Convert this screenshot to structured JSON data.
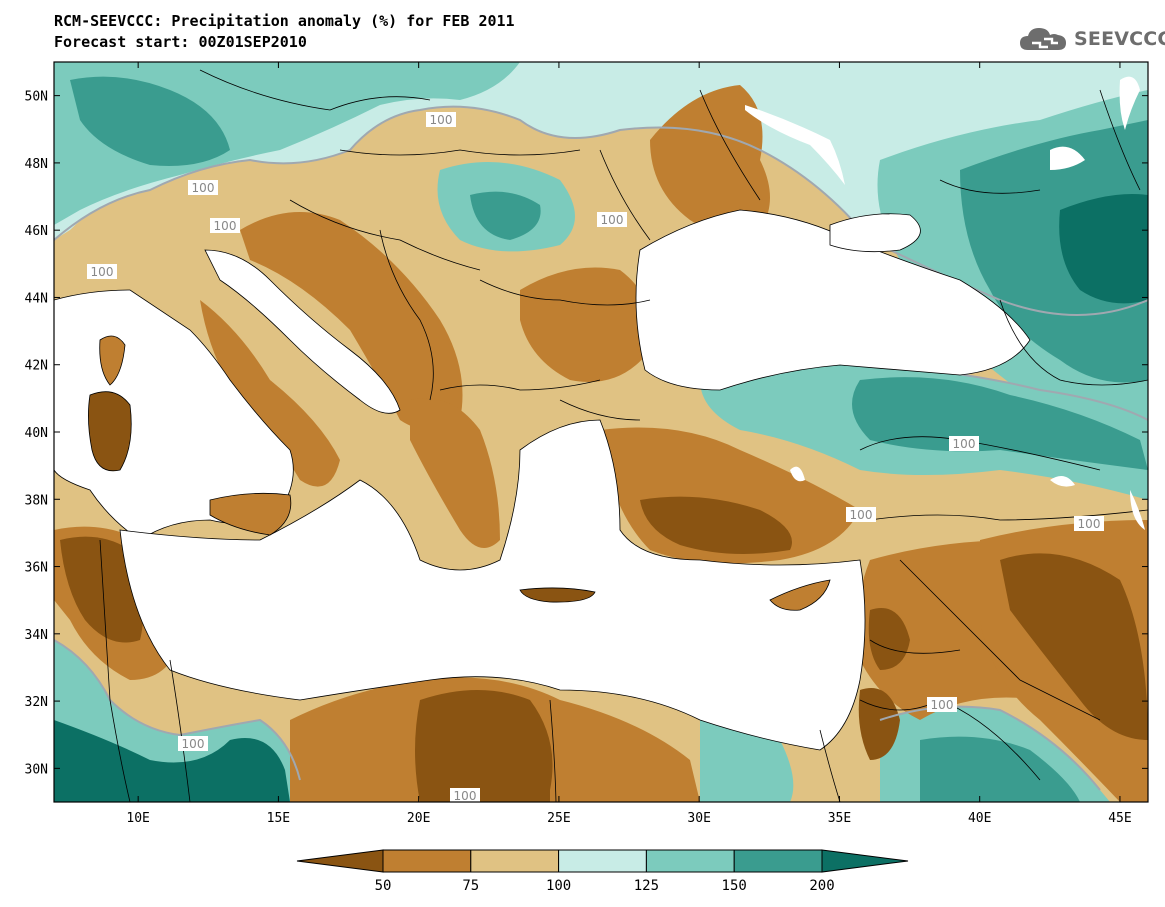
{
  "header": {
    "title": "RCM-SEEVCCC: Precipitation anomaly (%) for FEB 2011",
    "subtitle": "Forecast start: 00Z01SEP2010"
  },
  "logo": {
    "text": "SEEVCCC",
    "icon": "cloud-icon"
  },
  "map": {
    "lon_range": [
      7,
      46
    ],
    "lat_range": [
      29,
      51
    ],
    "lat_ticks": [
      "30N",
      "32N",
      "34N",
      "36N",
      "38N",
      "40N",
      "42N",
      "44N",
      "46N",
      "48N",
      "50N"
    ],
    "lon_ticks": [
      "10E",
      "15E",
      "20E",
      "25E",
      "30E",
      "35E",
      "40E",
      "45E"
    ],
    "contour_label": "100"
  },
  "colorbar": {
    "levels": [
      "50",
      "75",
      "100",
      "125",
      "150",
      "200"
    ],
    "colors": [
      "#8a5412",
      "#bf7f31",
      "#e0c283",
      "#c8ece6",
      "#7ccbbd",
      "#3a9c8f",
      "#0c7064"
    ]
  }
}
